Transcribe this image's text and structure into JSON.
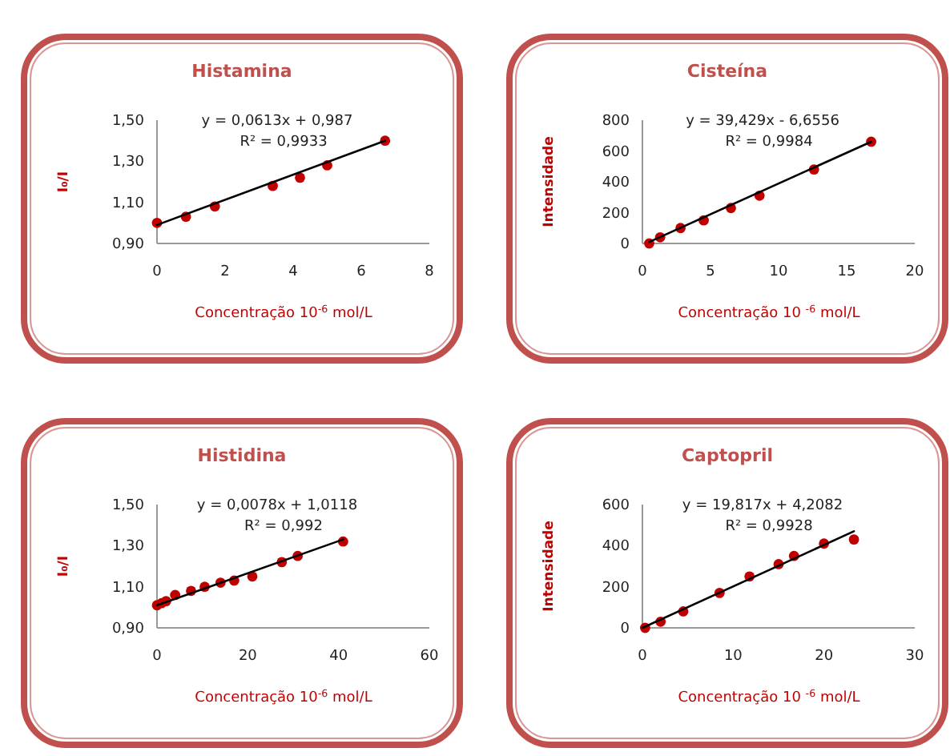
{
  "chart_data": [
    {
      "type": "scatter",
      "title": "Histamina",
      "xlabel": "Concentração 10$^{-6}$ mol/L",
      "ylabel": "I₀/I",
      "xlim": [
        0,
        8
      ],
      "xticks": [
        0,
        2,
        4,
        6,
        8
      ],
      "ylim": [
        0.9,
        1.5
      ],
      "yticks": [
        {
          "value": 0.9,
          "label": "0,90"
        },
        {
          "value": 1.1,
          "label": "1,10"
        },
        {
          "value": 1.3,
          "label": "1,30"
        },
        {
          "value": 1.5,
          "label": "1,50"
        }
      ],
      "annotations": [
        "y = 0,0613x + 0,987",
        "R² = 0,9933"
      ],
      "series": [
        {
          "marker": "circle",
          "color": "#c00000",
          "x": [
            0,
            0.85,
            1.7,
            3.4,
            4.2,
            5.0,
            6.7
          ],
          "values": [
            1.0,
            1.03,
            1.08,
            1.18,
            1.22,
            1.28,
            1.4
          ]
        },
        {
          "type": "line",
          "color": "#000000",
          "x": [
            0,
            6.7
          ],
          "values": [
            0.99,
            1.4
          ]
        }
      ]
    },
    {
      "type": "scatter",
      "title": "Cisteína",
      "xlabel": "Concentração 10 $^{-6}$ mol/L",
      "ylabel": "Intensidade",
      "xlim": [
        0,
        20
      ],
      "xticks": [
        0,
        5,
        10,
        15,
        20
      ],
      "ylim": [
        0,
        800
      ],
      "yticks": [
        0,
        200,
        400,
        600,
        800
      ],
      "annotations": [
        "y = 39,429x - 6,6556",
        "R² = 0,9984"
      ],
      "series": [
        {
          "marker": "circle",
          "color": "#c00000",
          "x": [
            0.5,
            1.3,
            2.8,
            4.5,
            6.5,
            8.6,
            12.6,
            16.8
          ],
          "values": [
            0,
            40,
            100,
            150,
            230,
            310,
            480,
            660
          ]
        },
        {
          "type": "line",
          "color": "#000000",
          "x": [
            0.5,
            16.8
          ],
          "values": [
            10,
            660
          ]
        }
      ]
    },
    {
      "type": "scatter",
      "title": "Histidina",
      "xlabel": "Concentração 10$^{-6}$ mol/L",
      "ylabel": "I₀/I",
      "xlim": [
        0,
        60
      ],
      "xticks": [
        0,
        20,
        40,
        60
      ],
      "ylim": [
        0.9,
        1.5
      ],
      "yticks": [
        {
          "value": 0.9,
          "label": "0,90"
        },
        {
          "value": 1.1,
          "label": "1,10"
        },
        {
          "value": 1.3,
          "label": "1,30"
        },
        {
          "value": 1.5,
          "label": "1,50"
        }
      ],
      "annotations": [
        "y = 0,0078x + 1,0118",
        "R² = 0,992"
      ],
      "series": [
        {
          "marker": "circle",
          "color": "#c00000",
          "x": [
            0,
            1,
            2,
            4,
            7.5,
            10.5,
            14,
            17,
            21,
            27.5,
            31,
            41
          ],
          "values": [
            1.01,
            1.02,
            1.03,
            1.06,
            1.08,
            1.1,
            1.12,
            1.13,
            1.15,
            1.22,
            1.25,
            1.32
          ]
        },
        {
          "type": "line",
          "color": "#000000",
          "x": [
            0,
            41
          ],
          "values": [
            1.01,
            1.33
          ]
        }
      ]
    },
    {
      "type": "scatter",
      "title": "Captopril",
      "xlabel": "Concentração 10 $^{-6}$ mol/L",
      "ylabel": "Intensidade",
      "xlim": [
        0,
        30
      ],
      "xticks": [
        0,
        10,
        20,
        30
      ],
      "ylim": [
        0,
        600
      ],
      "yticks": [
        0,
        200,
        400,
        600
      ],
      "annotations": [
        "y = 19,817x + 4,2082",
        "R² = 0,9928"
      ],
      "series": [
        {
          "marker": "circle",
          "color": "#c00000",
          "x": [
            0.3,
            2,
            4.5,
            8.5,
            11.8,
            15,
            16.7,
            20,
            23.3
          ],
          "values": [
            0,
            30,
            80,
            170,
            250,
            310,
            350,
            410,
            430
          ]
        },
        {
          "type": "line",
          "color": "#000000",
          "x": [
            0,
            23.3
          ],
          "values": [
            0,
            470
          ]
        }
      ]
    }
  ]
}
